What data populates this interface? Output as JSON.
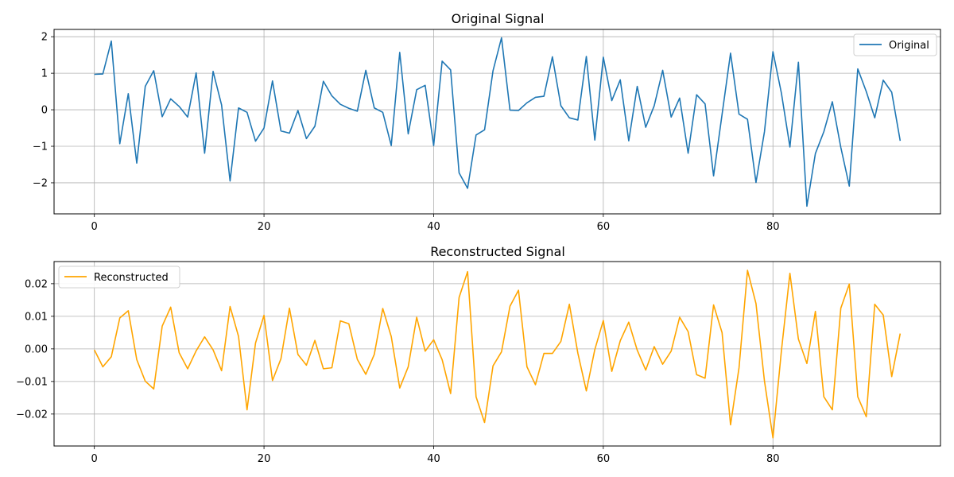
{
  "chart_data": [
    {
      "type": "line",
      "title": "Original Signal",
      "xlabel": "",
      "ylabel": "",
      "xlim": [
        -4.75,
        99.75
      ],
      "ylim": [
        -2.85,
        2.2
      ],
      "xticks": [
        0,
        20,
        40,
        60,
        80
      ],
      "yticks": [
        -2,
        -1,
        0,
        1,
        2
      ],
      "xtick_labels": [
        "0",
        "20",
        "40",
        "60",
        "80"
      ],
      "ytick_labels": [
        "−2",
        "−1",
        "0",
        "1",
        "2"
      ],
      "grid": true,
      "legend_position": "upper-right",
      "series": [
        {
          "name": "Original",
          "color": "#1f77b4",
          "x": [
            0,
            1,
            2,
            3,
            4,
            5,
            6,
            7,
            8,
            9,
            10,
            11,
            12,
            13,
            14,
            15,
            16,
            17,
            18,
            19,
            20,
            21,
            22,
            23,
            24,
            25,
            26,
            27,
            28,
            29,
            30,
            31,
            32,
            33,
            34,
            35,
            36,
            37,
            38,
            39,
            40,
            41,
            42,
            43,
            44,
            45,
            46,
            47,
            48,
            49,
            50,
            51,
            52,
            53,
            54,
            55,
            56,
            57,
            58,
            59,
            60,
            61,
            62,
            63,
            64,
            65,
            66,
            67,
            68,
            69,
            70,
            71,
            72,
            73,
            74,
            75,
            76,
            77,
            78,
            79,
            80,
            81,
            82,
            83,
            84,
            85,
            86,
            87,
            88,
            89,
            90,
            91,
            92,
            93,
            94,
            95
          ],
          "values": [
            0.97,
            0.98,
            1.88,
            -0.93,
            0.44,
            -1.46,
            0.64,
            1.07,
            -0.19,
            0.3,
            0.09,
            -0.2,
            1.01,
            -1.19,
            1.05,
            0.13,
            -1.95,
            0.05,
            -0.07,
            -0.86,
            -0.5,
            0.79,
            -0.58,
            -0.64,
            -0.02,
            -0.79,
            -0.45,
            0.78,
            0.38,
            0.15,
            0.04,
            -0.04,
            1.08,
            0.05,
            -0.07,
            -0.98,
            1.57,
            -0.66,
            0.55,
            0.67,
            -0.98,
            1.33,
            1.09,
            -1.73,
            -2.15,
            -0.69,
            -0.55,
            1.07,
            1.97,
            -0.01,
            -0.02,
            0.19,
            0.34,
            0.37,
            1.45,
            0.11,
            -0.22,
            -0.28,
            1.46,
            -0.83,
            1.44,
            0.25,
            0.82,
            -0.85,
            0.64,
            -0.48,
            0.11,
            1.08,
            -0.2,
            0.32,
            -1.19,
            0.41,
            0.16,
            -1.81,
            -0.13,
            1.55,
            -0.12,
            -0.26,
            -1.99,
            -0.6,
            1.59,
            0.45,
            -1.02,
            1.3,
            -2.64,
            -1.2,
            -0.6,
            0.22,
            -1.03,
            -2.09,
            1.12,
            0.5,
            -0.22,
            0.81,
            0.48,
            -0.85
          ]
        }
      ]
    },
    {
      "type": "line",
      "title": "Reconstructed Signal",
      "xlabel": "",
      "ylabel": "",
      "xlim": [
        -4.75,
        99.75
      ],
      "ylim": [
        -0.0298,
        0.0268
      ],
      "xticks": [
        0,
        20,
        40,
        60,
        80
      ],
      "yticks": [
        -0.02,
        -0.01,
        0.0,
        0.01,
        0.02
      ],
      "xtick_labels": [
        "0",
        "20",
        "40",
        "60",
        "80"
      ],
      "ytick_labels": [
        "−0.02",
        "−0.01",
        "0.00",
        "0.01",
        "0.02"
      ],
      "grid": true,
      "legend_position": "upper-left",
      "series": [
        {
          "name": "Reconstructed",
          "color": "#ffa500",
          "x": [
            0,
            1,
            2,
            3,
            4,
            5,
            6,
            7,
            8,
            9,
            10,
            11,
            12,
            13,
            14,
            15,
            16,
            17,
            18,
            19,
            20,
            21,
            22,
            23,
            24,
            25,
            26,
            27,
            28,
            29,
            30,
            31,
            32,
            33,
            34,
            35,
            36,
            37,
            38,
            39,
            40,
            41,
            42,
            43,
            44,
            45,
            46,
            47,
            48,
            49,
            50,
            51,
            52,
            53,
            54,
            55,
            56,
            57,
            58,
            59,
            60,
            61,
            62,
            63,
            64,
            65,
            66,
            67,
            68,
            69,
            70,
            71,
            72,
            73,
            74,
            75,
            76,
            77,
            78,
            79,
            80,
            81,
            82,
            83,
            84,
            85,
            86,
            87,
            88,
            89,
            90,
            91,
            92,
            93,
            94,
            95
          ],
          "values": [
            -0.0003,
            -0.0055,
            -0.0024,
            0.0095,
            0.0117,
            -0.0033,
            -0.0099,
            -0.0123,
            0.007,
            0.0128,
            -0.0012,
            -0.0061,
            -0.0006,
            0.0037,
            -0.0003,
            -0.0067,
            0.013,
            0.0038,
            -0.0187,
            0.0018,
            0.0103,
            -0.0097,
            -0.003,
            0.0125,
            -0.0017,
            -0.005,
            0.0026,
            -0.0061,
            -0.0058,
            0.0086,
            0.0077,
            -0.0032,
            -0.0078,
            -0.0017,
            0.0124,
            0.0038,
            -0.012,
            -0.0055,
            0.0097,
            -0.0007,
            0.0028,
            -0.0033,
            -0.0137,
            0.0158,
            0.0237,
            -0.0147,
            -0.0226,
            -0.0052,
            -0.0009,
            0.0131,
            0.018,
            -0.0055,
            -0.011,
            -0.0014,
            -0.0014,
            0.0023,
            0.0137,
            -0.0013,
            -0.0129,
            -0.0002,
            0.0087,
            -0.0069,
            0.0025,
            0.0082,
            -0.0004,
            -0.0065,
            0.0007,
            -0.0047,
            -0.0007,
            0.0097,
            0.0053,
            -0.0079,
            -0.009,
            0.0135,
            0.005,
            -0.0233,
            -0.0058,
            0.0241,
            0.0139,
            -0.0099,
            -0.0273,
            -0.0005,
            0.0232,
            0.003,
            -0.0045,
            0.0115,
            -0.0147,
            -0.0187,
            0.0125,
            0.0199,
            -0.0147,
            -0.0208,
            0.0137,
            0.0104,
            -0.0085,
            0.0047
          ]
        }
      ]
    }
  ]
}
